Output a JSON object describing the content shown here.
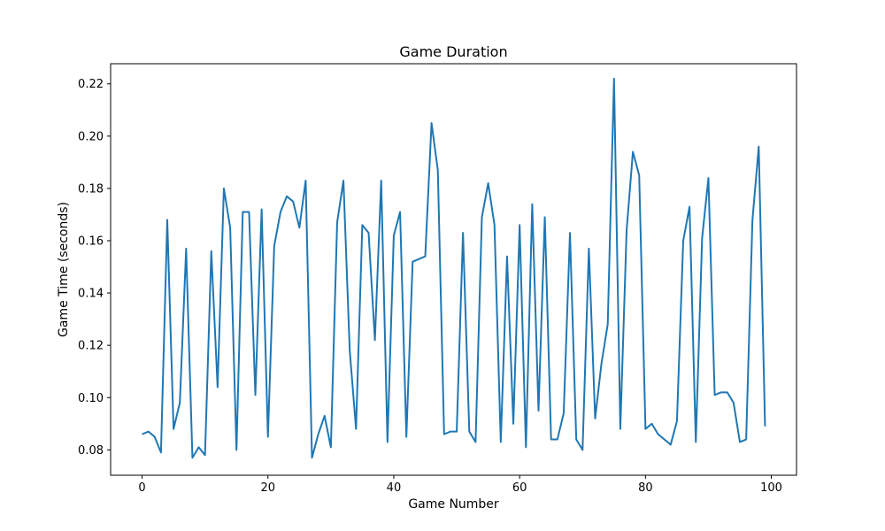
{
  "chart_data": {
    "type": "line",
    "title": "Game Duration",
    "xlabel": "Game Number",
    "ylabel": "Game Time (seconds)",
    "xlim": [
      -5,
      104
    ],
    "ylim": [
      0.0703,
      0.2277
    ],
    "xticks": [
      0,
      20,
      40,
      60,
      80,
      100
    ],
    "yticks": [
      0.08,
      0.1,
      0.12,
      0.14,
      0.16,
      0.18,
      0.2,
      0.22
    ],
    "grid": false,
    "legend": "none",
    "line_color": "#1f77b4",
    "series": [
      {
        "x": [
          0,
          1,
          2,
          3,
          4,
          5,
          6,
          7,
          8,
          9,
          10,
          11,
          12,
          13,
          14,
          15,
          16,
          17,
          18,
          19,
          20,
          21,
          22,
          23,
          24,
          25,
          26,
          27,
          28,
          29,
          30,
          31,
          32,
          33,
          34,
          35,
          36,
          37,
          38,
          39,
          40,
          41,
          42,
          43,
          44,
          45,
          46,
          47,
          48,
          49,
          50,
          51,
          52,
          53,
          54,
          55,
          56,
          57,
          58,
          59,
          60,
          61,
          62,
          63,
          64,
          65,
          66,
          67,
          68,
          69,
          70,
          71,
          72,
          73,
          74,
          75,
          76,
          77,
          78,
          79,
          80,
          81,
          82,
          83,
          84,
          85,
          86,
          87,
          88,
          89,
          90,
          91,
          92,
          93,
          94,
          95,
          96,
          97,
          98,
          99
        ],
        "values": [
          0.086,
          0.087,
          0.085,
          0.079,
          0.168,
          0.088,
          0.098,
          0.157,
          0.077,
          0.081,
          0.078,
          0.156,
          0.104,
          0.18,
          0.165,
          0.08,
          0.171,
          0.171,
          0.101,
          0.172,
          0.085,
          0.158,
          0.171,
          0.177,
          0.175,
          0.165,
          0.183,
          0.077,
          0.086,
          0.093,
          0.081,
          0.167,
          0.183,
          0.118,
          0.088,
          0.166,
          0.163,
          0.122,
          0.183,
          0.083,
          0.162,
          0.171,
          0.085,
          0.152,
          0.153,
          0.154,
          0.205,
          0.187,
          0.086,
          0.087,
          0.087,
          0.163,
          0.087,
          0.083,
          0.169,
          0.182,
          0.166,
          0.083,
          0.154,
          0.09,
          0.166,
          0.081,
          0.174,
          0.095,
          0.169,
          0.084,
          0.084,
          0.094,
          0.163,
          0.084,
          0.08,
          0.157,
          0.092,
          0.113,
          0.128,
          0.222,
          0.088,
          0.164,
          0.194,
          0.185,
          0.088,
          0.09,
          0.086,
          0.084,
          0.082,
          0.091,
          0.16,
          0.173,
          0.083,
          0.161,
          0.184,
          0.101,
          0.102,
          0.102,
          0.098,
          0.083,
          0.084,
          0.168,
          0.196,
          0.089
        ]
      }
    ]
  }
}
